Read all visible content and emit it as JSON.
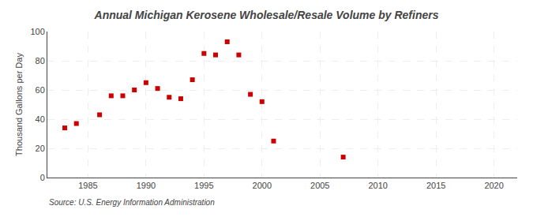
{
  "chart_data": {
    "type": "scatter",
    "title": "Annual Michigan Kerosene Wholesale/Resale Volume by Refiners",
    "ylabel": "Thousand Gallons per Day",
    "annotations": [
      "Source: U.S. Energy Information Administration"
    ],
    "x": [
      1983,
      1984,
      1986,
      1987,
      1988,
      1989,
      1990,
      1991,
      1992,
      1993,
      1994,
      1995,
      1996,
      1997,
      1998,
      1999,
      2000,
      2001,
      2007
    ],
    "values": [
      34,
      37,
      43,
      56,
      56,
      60,
      65,
      61,
      55,
      54,
      67,
      85,
      84,
      93,
      84,
      57,
      52,
      25,
      14
    ],
    "color": "#cc0000",
    "marker": "square",
    "xlim": [
      1981.5,
      2022
    ],
    "ylim": [
      0,
      100
    ],
    "xticks": [
      1985,
      1990,
      1995,
      2000,
      2005,
      2010,
      2015,
      2020
    ],
    "yticks": [
      0,
      20,
      40,
      60,
      80,
      100
    ],
    "grid": true
  }
}
